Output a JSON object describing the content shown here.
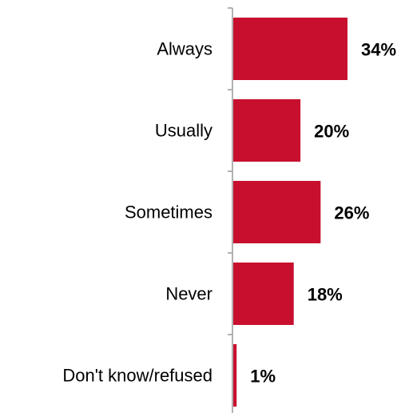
{
  "chart_data": {
    "type": "bar",
    "orientation": "horizontal",
    "categories": [
      "Always",
      "Usually",
      "Sometimes",
      "Never",
      "Don't know/refused"
    ],
    "values": [
      34,
      20,
      26,
      18,
      1
    ],
    "value_labels": [
      "34%",
      "20%",
      "26%",
      "18%",
      "1%"
    ],
    "bar_color": "#C8102E",
    "xlim": [
      0,
      34
    ],
    "grid": false,
    "legend": "none"
  }
}
